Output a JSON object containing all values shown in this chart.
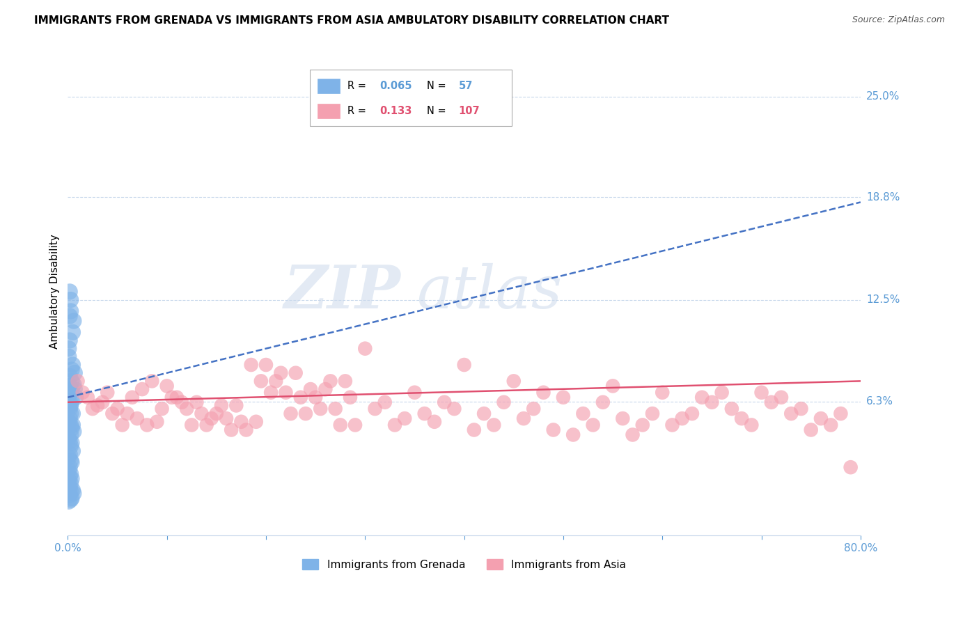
{
  "title": "IMMIGRANTS FROM GRENADA VS IMMIGRANTS FROM ASIA AMBULATORY DISABILITY CORRELATION CHART",
  "source": "Source: ZipAtlas.com",
  "ylabel": "Ambulatory Disability",
  "xlim": [
    0.0,
    0.8
  ],
  "ylim": [
    -0.02,
    0.28
  ],
  "grenada_color": "#7fb3e8",
  "asia_color": "#f4a0b0",
  "grenada_R": "0.065",
  "grenada_N": "57",
  "asia_R": "0.133",
  "asia_N": "107",
  "watermark_zip": "ZIP",
  "watermark_atlas": "atlas",
  "axis_color": "#5b9bd5",
  "grid_color": "#c8d8ec",
  "trend_grenada_color": "#4472c4",
  "trend_asia_color": "#e05070",
  "background_color": "#ffffff",
  "grenada_scatter_x": [
    0.002,
    0.003,
    0.001,
    0.005,
    0.004,
    0.006,
    0.003,
    0.002,
    0.008,
    0.004,
    0.003,
    0.007,
    0.002,
    0.005,
    0.001,
    0.003,
    0.004,
    0.002,
    0.006,
    0.003,
    0.001,
    0.002,
    0.004,
    0.003,
    0.005,
    0.002,
    0.001,
    0.003,
    0.004,
    0.002,
    0.007,
    0.003,
    0.002,
    0.004,
    0.001,
    0.003,
    0.002,
    0.005,
    0.003,
    0.006,
    0.002,
    0.004,
    0.003,
    0.001,
    0.005,
    0.004,
    0.003,
    0.002,
    0.006,
    0.003,
    0.001,
    0.002,
    0.004,
    0.003,
    0.005,
    0.002,
    0.001
  ],
  "grenada_scatter_y": [
    0.115,
    0.118,
    0.095,
    0.105,
    0.082,
    0.073,
    0.068,
    0.072,
    0.065,
    0.063,
    0.061,
    0.07,
    0.058,
    0.055,
    0.05,
    0.048,
    0.046,
    0.052,
    0.044,
    0.042,
    0.04,
    0.038,
    0.037,
    0.035,
    0.032,
    0.03,
    0.028,
    0.026,
    0.025,
    0.022,
    0.08,
    0.018,
    0.016,
    0.015,
    0.014,
    0.012,
    0.01,
    0.008,
    0.007,
    0.006,
    0.005,
    0.003,
    0.002,
    0.001,
    0.085,
    0.075,
    0.125,
    0.1,
    0.112,
    0.06,
    0.09,
    0.078,
    0.07,
    0.055,
    0.048,
    0.13,
    0.02
  ],
  "asia_scatter_x": [
    0.02,
    0.03,
    0.04,
    0.05,
    0.06,
    0.07,
    0.08,
    0.09,
    0.1,
    0.11,
    0.12,
    0.13,
    0.14,
    0.15,
    0.16,
    0.17,
    0.18,
    0.19,
    0.2,
    0.21,
    0.22,
    0.23,
    0.24,
    0.25,
    0.26,
    0.27,
    0.28,
    0.29,
    0.3,
    0.31,
    0.32,
    0.33,
    0.34,
    0.35,
    0.36,
    0.37,
    0.38,
    0.39,
    0.4,
    0.41,
    0.42,
    0.43,
    0.44,
    0.45,
    0.46,
    0.47,
    0.48,
    0.49,
    0.5,
    0.51,
    0.52,
    0.53,
    0.54,
    0.55,
    0.56,
    0.57,
    0.58,
    0.59,
    0.6,
    0.61,
    0.62,
    0.63,
    0.64,
    0.65,
    0.66,
    0.67,
    0.68,
    0.69,
    0.7,
    0.71,
    0.72,
    0.73,
    0.74,
    0.75,
    0.76,
    0.77,
    0.78,
    0.79,
    0.01,
    0.015,
    0.025,
    0.035,
    0.045,
    0.055,
    0.065,
    0.075,
    0.085,
    0.095,
    0.105,
    0.115,
    0.125,
    0.135,
    0.145,
    0.155,
    0.165,
    0.175,
    0.185,
    0.195,
    0.205,
    0.215,
    0.225,
    0.235,
    0.245,
    0.255,
    0.265,
    0.275,
    0.285
  ],
  "asia_scatter_y": [
    0.065,
    0.06,
    0.068,
    0.058,
    0.055,
    0.052,
    0.048,
    0.05,
    0.072,
    0.065,
    0.058,
    0.062,
    0.048,
    0.055,
    0.052,
    0.06,
    0.045,
    0.05,
    0.085,
    0.075,
    0.068,
    0.08,
    0.055,
    0.065,
    0.07,
    0.058,
    0.075,
    0.048,
    0.095,
    0.058,
    0.062,
    0.048,
    0.052,
    0.068,
    0.055,
    0.05,
    0.062,
    0.058,
    0.085,
    0.045,
    0.055,
    0.048,
    0.062,
    0.075,
    0.052,
    0.058,
    0.068,
    0.045,
    0.065,
    0.042,
    0.055,
    0.048,
    0.062,
    0.072,
    0.052,
    0.042,
    0.048,
    0.055,
    0.068,
    0.048,
    0.052,
    0.055,
    0.065,
    0.062,
    0.068,
    0.058,
    0.052,
    0.048,
    0.068,
    0.062,
    0.065,
    0.055,
    0.058,
    0.045,
    0.052,
    0.048,
    0.055,
    0.022,
    0.075,
    0.068,
    0.058,
    0.062,
    0.055,
    0.048,
    0.065,
    0.07,
    0.075,
    0.058,
    0.065,
    0.062,
    0.048,
    0.055,
    0.052,
    0.06,
    0.045,
    0.05,
    0.085,
    0.075,
    0.068,
    0.08,
    0.055,
    0.065,
    0.07,
    0.058,
    0.075,
    0.048,
    0.065
  ],
  "grenada_trend_x": [
    0.0,
    0.8
  ],
  "grenada_trend_y": [
    0.065,
    0.185
  ],
  "asia_trend_x": [
    0.0,
    0.8
  ],
  "asia_trend_y": [
    0.062,
    0.075
  ],
  "ytick_vals": [
    0.0625,
    0.125,
    0.188,
    0.25
  ],
  "ytick_labels": [
    "6.3%",
    "12.5%",
    "18.8%",
    "25.0%"
  ]
}
